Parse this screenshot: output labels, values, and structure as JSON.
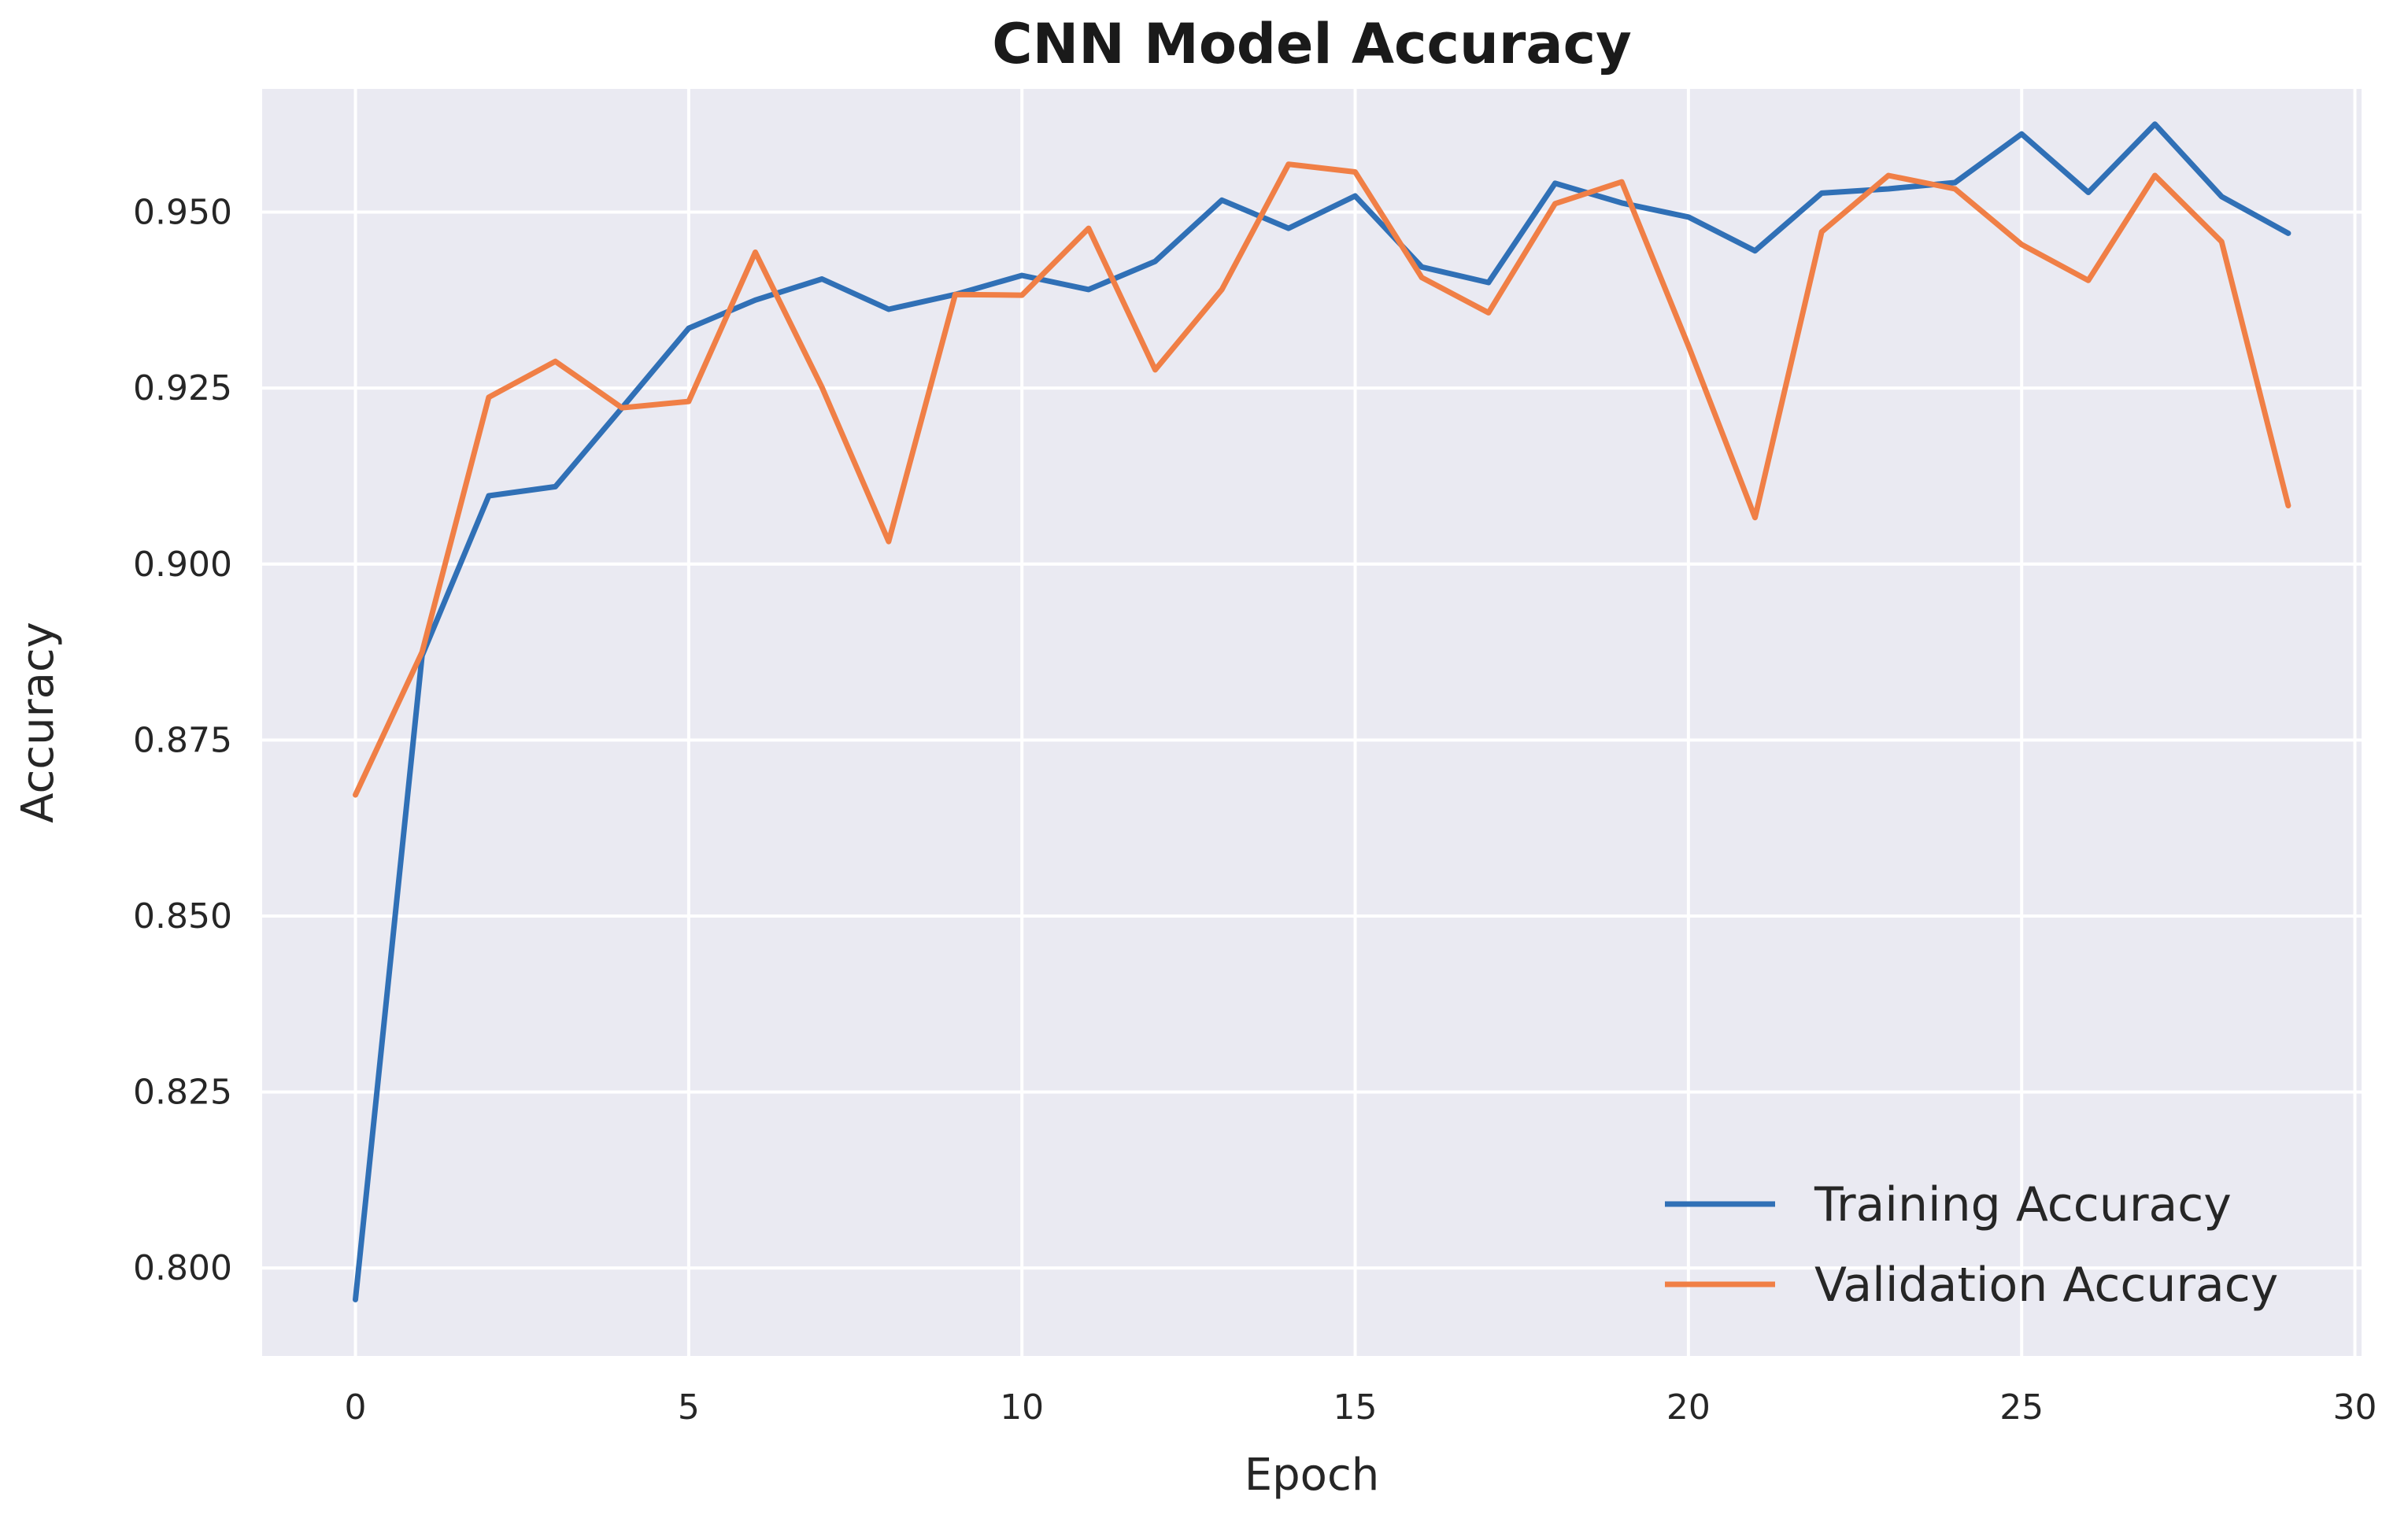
{
  "chart_data": {
    "type": "line",
    "title": "CNN Model Accuracy",
    "xlabel": "Epoch",
    "ylabel": "Accuracy",
    "xlim": [
      -1.4,
      30.1
    ],
    "ylim": [
      0.7875,
      0.9675
    ],
    "xticks": [
      0,
      5,
      10,
      15,
      20,
      25,
      30
    ],
    "xtick_labels": [
      "0",
      "5",
      "10",
      "15",
      "20",
      "25",
      "30"
    ],
    "yticks": [
      0.8,
      0.825,
      0.85,
      0.875,
      0.9,
      0.925,
      0.95
    ],
    "ytick_labels": [
      "0.800",
      "0.825",
      "0.850",
      "0.875",
      "0.900",
      "0.925",
      "0.950"
    ],
    "grid": true,
    "legend_position": "lower-right",
    "x": [
      0,
      1,
      2,
      3,
      4,
      5,
      6,
      7,
      8,
      9,
      10,
      11,
      12,
      13,
      14,
      15,
      16,
      17,
      18,
      19,
      20,
      21,
      22,
      23,
      24,
      25,
      26,
      27,
      28,
      29
    ],
    "series": [
      {
        "name": "Training Accuracy",
        "color": "#3070b6",
        "values": [
          0.7955,
          0.887,
          0.9097,
          0.911,
          0.9222,
          0.9335,
          0.9375,
          0.9405,
          0.9362,
          0.9383,
          0.941,
          0.939,
          0.943,
          0.9517,
          0.9477,
          0.9523,
          0.9422,
          0.94,
          0.9541,
          0.9513,
          0.9493,
          0.9445,
          0.9527,
          0.9533,
          0.9542,
          0.9611,
          0.9528,
          0.9625,
          0.9522,
          0.947
        ]
      },
      {
        "name": "Validation Accuracy",
        "color": "#f07f46",
        "values": [
          0.8672,
          0.8875,
          0.9237,
          0.9288,
          0.9222,
          0.9231,
          0.9443,
          0.9251,
          0.9032,
          0.9383,
          0.9382,
          0.9477,
          0.9276,
          0.939,
          0.9568,
          0.9557,
          0.9407,
          0.9357,
          0.9512,
          0.9543,
          0.931,
          0.9066,
          0.9472,
          0.9552,
          0.9533,
          0.9454,
          0.9403,
          0.9552,
          0.9458,
          0.9083
        ]
      }
    ]
  }
}
